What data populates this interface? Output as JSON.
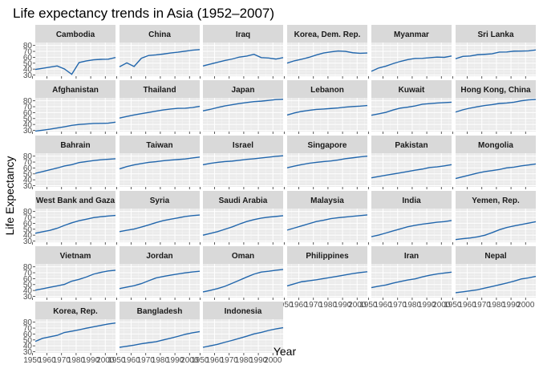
{
  "chart_data": {
    "type": "line",
    "title": "Life expectancy trends in Asia (1952–2007)",
    "xlabel": "Year",
    "ylabel": "Life Expectancy",
    "xlim": [
      1952,
      2007
    ],
    "ylim": [
      28,
      85
    ],
    "x_ticks": [
      1950,
      1960,
      1970,
      1980,
      1990,
      2000
    ],
    "y_ticks": [
      30,
      40,
      50,
      60,
      70,
      80
    ],
    "grid": true,
    "facet_layout": "wrap, 6 columns",
    "line_color": "#2166ac",
    "panel_color": "#ebebeb",
    "strip_color": "#d9d9d9",
    "x": [
      1952,
      1957,
      1962,
      1967,
      1972,
      1977,
      1982,
      1987,
      1992,
      1997,
      2002,
      2007
    ],
    "series": [
      {
        "name": "Cambodia",
        "values": [
          39.4,
          41.4,
          43.4,
          45.4,
          40.3,
          31.2,
          51.0,
          53.9,
          55.8,
          56.5,
          56.8,
          59.7
        ]
      },
      {
        "name": "China",
        "values": [
          44.0,
          50.5,
          44.5,
          58.4,
          63.1,
          64.0,
          65.5,
          67.3,
          68.7,
          70.4,
          72.0,
          73.0
        ]
      },
      {
        "name": "Iraq",
        "values": [
          45.3,
          48.4,
          51.5,
          54.5,
          57.0,
          60.4,
          62.0,
          65.0,
          59.5,
          58.8,
          57.0,
          59.5
        ]
      },
      {
        "name": "Korea, Dem. Rep.",
        "values": [
          50.1,
          54.1,
          56.7,
          59.9,
          63.9,
          67.2,
          69.1,
          70.6,
          70.0,
          67.7,
          66.7,
          67.3
        ]
      },
      {
        "name": "Myanmar",
        "values": [
          36.3,
          41.9,
          45.1,
          49.4,
          53.1,
          56.1,
          58.1,
          58.3,
          59.3,
          60.3,
          59.9,
          62.1
        ]
      },
      {
        "name": "Sri Lanka",
        "values": [
          57.6,
          61.5,
          62.2,
          64.3,
          65.0,
          65.9,
          68.8,
          69.0,
          70.4,
          70.5,
          70.8,
          72.4
        ]
      },
      {
        "name": "Afghanistan",
        "values": [
          28.8,
          30.3,
          32.0,
          34.0,
          36.1,
          38.4,
          39.9,
          40.8,
          41.7,
          41.8,
          42.1,
          43.8
        ]
      },
      {
        "name": "Thailand",
        "values": [
          50.8,
          53.6,
          56.1,
          58.3,
          60.4,
          62.5,
          64.6,
          66.1,
          67.3,
          67.5,
          68.6,
          70.6
        ]
      },
      {
        "name": "Japan",
        "values": [
          63.0,
          65.5,
          68.7,
          71.4,
          73.4,
          75.4,
          77.1,
          78.7,
          79.4,
          80.7,
          82.0,
          82.6
        ]
      },
      {
        "name": "Lebanon",
        "values": [
          55.9,
          59.5,
          62.1,
          63.9,
          65.4,
          66.1,
          67.0,
          67.9,
          69.3,
          70.3,
          71.0,
          72.0
        ]
      },
      {
        "name": "Kuwait",
        "values": [
          55.6,
          58.0,
          60.5,
          64.6,
          67.7,
          69.3,
          71.3,
          74.2,
          75.2,
          76.2,
          76.9,
          77.6
        ]
      },
      {
        "name": "Hong Kong, China",
        "values": [
          60.9,
          64.8,
          67.7,
          70.0,
          72.0,
          73.6,
          75.5,
          76.2,
          77.6,
          80.0,
          81.5,
          82.2
        ]
      },
      {
        "name": "Bahrain",
        "values": [
          50.9,
          53.8,
          56.9,
          59.9,
          63.3,
          65.6,
          69.1,
          70.8,
          72.6,
          73.9,
          74.8,
          75.6
        ]
      },
      {
        "name": "Taiwan",
        "values": [
          58.5,
          62.4,
          65.2,
          67.5,
          69.4,
          70.6,
          72.2,
          73.4,
          74.3,
          75.3,
          76.9,
          78.4
        ]
      },
      {
        "name": "Israel",
        "values": [
          65.4,
          67.8,
          69.4,
          70.8,
          71.6,
          73.1,
          74.5,
          75.6,
          76.9,
          78.3,
          79.7,
          80.7
        ]
      },
      {
        "name": "Singapore",
        "values": [
          60.4,
          63.2,
          65.8,
          67.9,
          69.5,
          70.8,
          71.8,
          73.6,
          75.8,
          77.2,
          78.8,
          80.0
        ]
      },
      {
        "name": "Pakistan",
        "values": [
          43.4,
          45.6,
          47.7,
          49.8,
          51.9,
          54.0,
          56.2,
          58.2,
          60.8,
          61.8,
          63.6,
          65.5
        ]
      },
      {
        "name": "Mongolia",
        "values": [
          42.2,
          45.2,
          48.3,
          51.3,
          53.8,
          55.5,
          57.5,
          60.2,
          61.3,
          63.6,
          65.0,
          66.8
        ]
      },
      {
        "name": "West Bank and Gaza",
        "values": [
          43.2,
          45.7,
          48.1,
          51.6,
          56.5,
          60.8,
          64.4,
          67.0,
          69.7,
          71.1,
          72.4,
          73.4
        ]
      },
      {
        "name": "Syria",
        "values": [
          45.9,
          48.3,
          50.3,
          53.7,
          57.3,
          61.2,
          64.6,
          66.97,
          69.2,
          71.5,
          73.1,
          74.1
        ]
      },
      {
        "name": "Saudi Arabia",
        "values": [
          39.9,
          42.9,
          45.9,
          49.9,
          53.9,
          58.7,
          63.0,
          66.3,
          68.8,
          70.5,
          71.6,
          72.8
        ]
      },
      {
        "name": "Malaysia",
        "values": [
          48.5,
          52.1,
          55.7,
          59.4,
          63.0,
          65.3,
          68.0,
          69.5,
          70.7,
          71.9,
          73.0,
          74.2
        ]
      },
      {
        "name": "India",
        "values": [
          37.4,
          40.2,
          43.6,
          47.2,
          50.7,
          54.2,
          56.6,
          58.6,
          60.2,
          61.8,
          62.9,
          64.7
        ]
      },
      {
        "name": "Yemen, Rep.",
        "values": [
          32.5,
          34.0,
          35.2,
          37.0,
          39.8,
          44.2,
          49.1,
          52.9,
          55.6,
          58.0,
          60.3,
          62.7
        ]
      },
      {
        "name": "Vietnam",
        "values": [
          40.4,
          42.9,
          45.4,
          47.8,
          50.3,
          55.8,
          58.8,
          62.8,
          67.7,
          70.7,
          73.0,
          74.2
        ]
      },
      {
        "name": "Jordan",
        "values": [
          43.2,
          45.7,
          48.1,
          51.6,
          56.5,
          61.1,
          63.7,
          65.9,
          68.0,
          69.8,
          71.3,
          72.5
        ]
      },
      {
        "name": "Oman",
        "values": [
          37.6,
          40.1,
          43.2,
          46.99,
          52.1,
          57.4,
          62.7,
          67.7,
          71.2,
          72.5,
          74.2,
          75.6
        ]
      },
      {
        "name": "Philippines",
        "values": [
          47.8,
          51.3,
          54.8,
          56.4,
          58.1,
          60.1,
          62.1,
          64.2,
          66.5,
          68.6,
          70.3,
          71.7
        ]
      },
      {
        "name": "Iran",
        "values": [
          44.9,
          47.2,
          49.3,
          52.5,
          55.2,
          57.7,
          59.6,
          63.0,
          65.7,
          68.0,
          69.5,
          71.0
        ]
      },
      {
        "name": "Nepal",
        "values": [
          36.2,
          37.7,
          39.4,
          41.2,
          43.97,
          46.7,
          49.6,
          52.5,
          55.7,
          59.4,
          61.3,
          63.8
        ]
      },
      {
        "name": "Korea, Rep.",
        "values": [
          47.5,
          52.7,
          55.3,
          57.7,
          62.6,
          64.8,
          67.1,
          69.8,
          72.2,
          74.6,
          77.0,
          78.6
        ]
      },
      {
        "name": "Bangladesh",
        "values": [
          37.5,
          39.3,
          41.2,
          43.5,
          45.3,
          46.9,
          50.0,
          52.8,
          56.0,
          59.4,
          62.0,
          64.1
        ]
      },
      {
        "name": "Indonesia",
        "values": [
          37.5,
          39.9,
          42.5,
          46.0,
          49.2,
          52.7,
          56.2,
          60.1,
          62.7,
          66.0,
          68.6,
          70.7
        ]
      }
    ]
  }
}
